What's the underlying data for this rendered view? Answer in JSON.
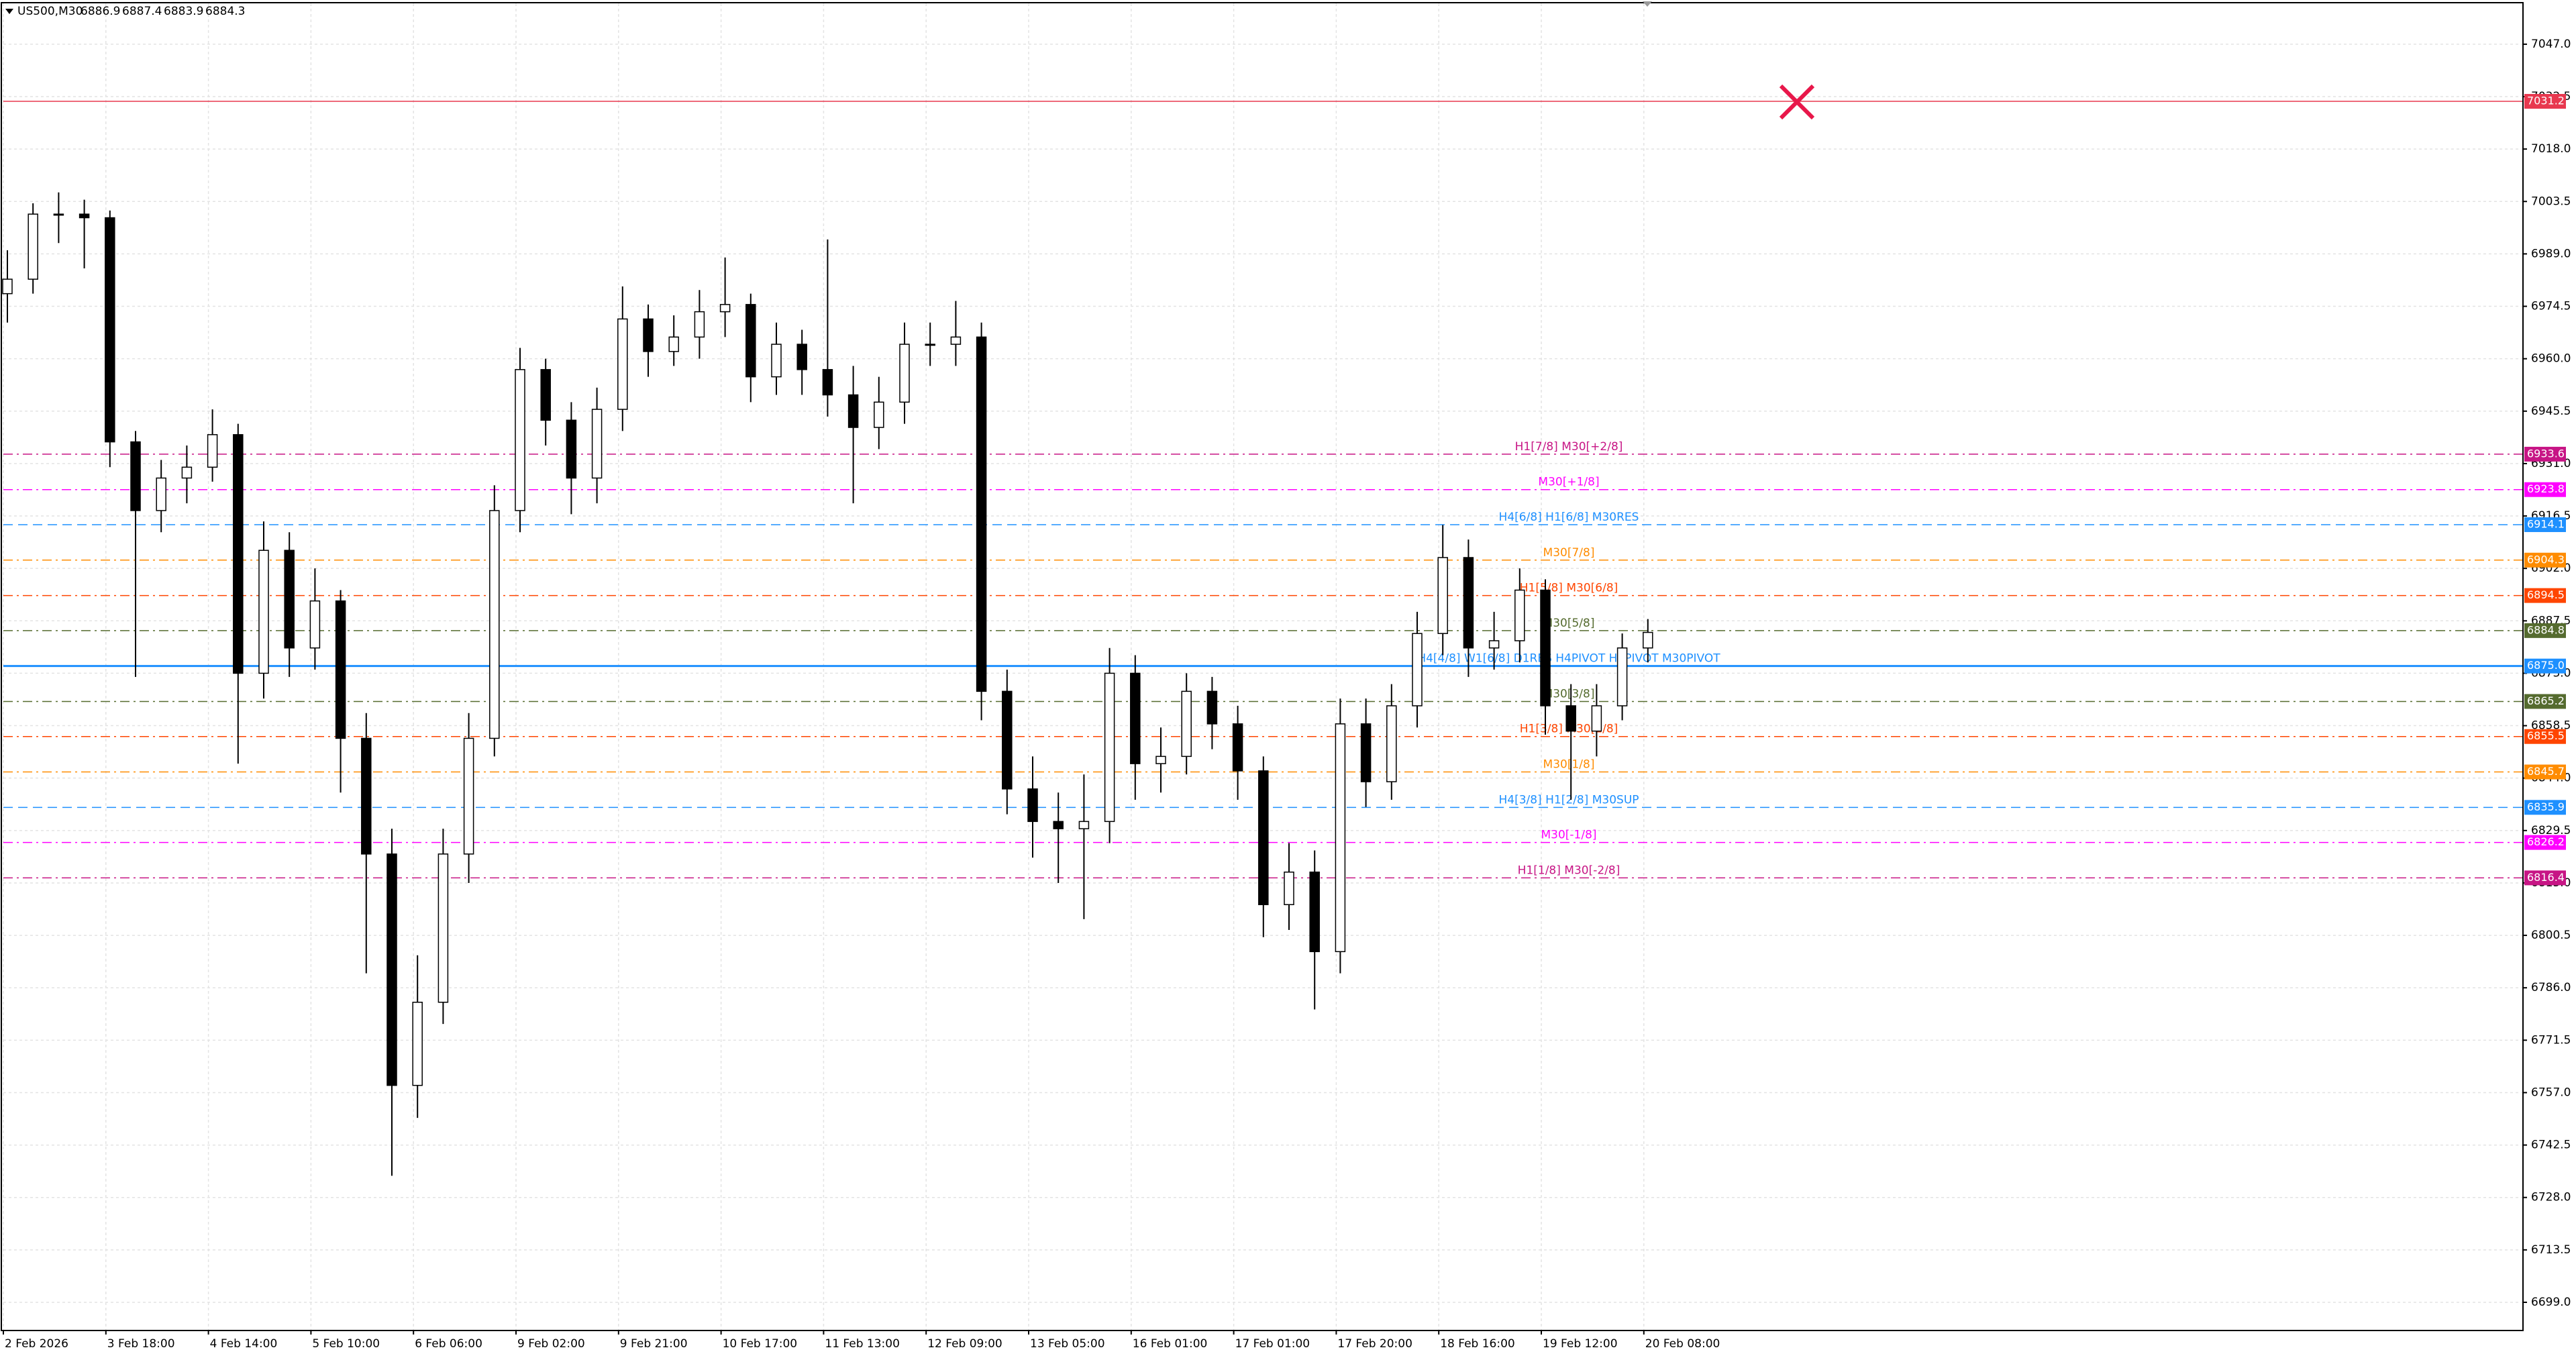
{
  "header": {
    "symbol": "US500,M30",
    "ohlc": [
      6886.9,
      6887.4,
      6883.9,
      6884.3
    ]
  },
  "chart_data": {
    "type": "candlestick",
    "categories": [
      "2 Feb 2026",
      null,
      null,
      null,
      "3 Feb 18:00",
      null,
      null,
      null,
      "4 Feb 14:00",
      null,
      null,
      null,
      "5 Feb 10:00",
      null,
      null,
      null,
      "6 Feb 06:00",
      null,
      null,
      null,
      "9 Feb 02:00",
      null,
      null,
      null,
      "9 Feb 21:00",
      null,
      null,
      null,
      "10 Feb 17:00",
      null,
      null,
      null,
      "11 Feb 13:00",
      null,
      null,
      null,
      "12 Feb 09:00",
      null,
      null,
      null,
      "13 Feb 05:00",
      null,
      null,
      null,
      "16 Feb 01:00",
      null,
      null,
      null,
      "17 Feb 01:00",
      null,
      null,
      null,
      "17 Feb 20:00",
      null,
      null,
      null,
      "18 Feb 16:00",
      null,
      null,
      null,
      "19 Feb 12:00",
      null,
      null,
      null,
      "20 Feb 08:00"
    ],
    "open": [
      6978,
      6982,
      7000,
      7000,
      6999,
      6937,
      6918,
      6927,
      6930,
      6939,
      6873,
      6907,
      6880,
      6893,
      6855,
      6823,
      6759,
      6782,
      6823,
      6855,
      6918,
      6957,
      6943,
      6927,
      6946,
      6971,
      6962,
      6966,
      6973,
      6975,
      6955,
      6964,
      6957,
      6950,
      6941,
      6948,
      6964,
      6964,
      6966,
      6868,
      6841,
      6832,
      6830,
      6832,
      6873,
      6848,
      6850,
      6868,
      6859,
      6846,
      6809,
      6818,
      6796,
      6859,
      6843,
      6864,
      6884,
      6905,
      6880,
      6882,
      6896,
      6864,
      6857,
      6864,
      6880
    ],
    "high": [
      6990,
      7003,
      7006,
      7004,
      7001,
      6940,
      6932,
      6936,
      6946,
      6942,
      6915,
      6912,
      6902,
      6896,
      6862,
      6830,
      6795,
      6830,
      6862,
      6925,
      6963,
      6960,
      6948,
      6952,
      6980,
      6975,
      6972,
      6979,
      6988,
      6978,
      6970,
      6968,
      6993,
      6958,
      6955,
      6970,
      6970,
      6976,
      6970,
      6874,
      6850,
      6840,
      6845,
      6880,
      6878,
      6858,
      6873,
      6872,
      6864,
      6850,
      6826,
      6824,
      6866,
      6866,
      6870,
      6890,
      6914,
      6910,
      6890,
      6902,
      6899,
      6870,
      6870,
      6884,
      6888
    ],
    "low": [
      6970,
      6978,
      6992,
      6985,
      6930,
      6872,
      6912,
      6920,
      6926,
      6848,
      6866,
      6872,
      6874,
      6840,
      6790,
      6734,
      6750,
      6776,
      6815,
      6850,
      6912,
      6936,
      6917,
      6920,
      6940,
      6955,
      6958,
      6960,
      6966,
      6948,
      6950,
      6950,
      6944,
      6920,
      6935,
      6942,
      6958,
      6958,
      6860,
      6834,
      6822,
      6815,
      6805,
      6826,
      6838,
      6840,
      6845,
      6852,
      6838,
      6800,
      6802,
      6780,
      6790,
      6836,
      6838,
      6858,
      6878,
      6872,
      6874,
      6876,
      6856,
      6838,
      6850,
      6860,
      6876
    ],
    "close": [
      6982,
      7000,
      7000,
      6999,
      6937,
      6918,
      6927,
      6930,
      6939,
      6873,
      6907,
      6880,
      6893,
      6855,
      6823,
      6759,
      6782,
      6823,
      6855,
      6918,
      6957,
      6943,
      6927,
      6946,
      6971,
      6962,
      6966,
      6973,
      6975,
      6955,
      6964,
      6957,
      6950,
      6941,
      6948,
      6964,
      6964,
      6966,
      6868,
      6841,
      6832,
      6830,
      6832,
      6873,
      6848,
      6850,
      6868,
      6859,
      6846,
      6809,
      6818,
      6796,
      6859,
      6843,
      6864,
      6884,
      6905,
      6880,
      6882,
      6896,
      6864,
      6857,
      6864,
      6880,
      6884.3
    ],
    "up_color": "#ffffff",
    "down_color": "#000000",
    "wick_color": "#000000",
    "ylim": [
      6691.2,
      7058.3
    ],
    "yticks": [
      {
        "value": 7047,
        "label": "7047.0"
      },
      7032.5,
      {
        "value": 7018,
        "label": "7018.0"
      },
      7003.5,
      {
        "value": 6989,
        "label": "6989.0"
      },
      6974.5,
      {
        "value": 6960,
        "label": "6960.0"
      },
      6945.5,
      {
        "value": 6931,
        "label": "6931.0"
      },
      6916.5,
      {
        "value": 6902,
        "label": "6902.0"
      },
      6887.5,
      {
        "value": 6873,
        "label": "6873.0"
      },
      6858.5,
      {
        "value": 6844,
        "label": "6844.0"
      },
      6829.5,
      {
        "value": 6815,
        "label": "6815.0"
      },
      6800.5,
      {
        "value": 6786,
        "label": "6786.0"
      },
      6771.5,
      {
        "value": 6757,
        "label": "6757.0"
      },
      6742.5,
      {
        "value": 6728,
        "label": "6728.0"
      },
      6713.5,
      {
        "value": 6699,
        "label": "6699.0"
      }
    ],
    "grid": true,
    "levels": [
      {
        "value": 7031.2,
        "color": "#e8384f",
        "style": "solid"
      },
      {
        "name": "H1[7/8] M30[+2/8]",
        "value": 6933.6,
        "color": "#c71585",
        "style": "dashdot"
      },
      {
        "name": "M30[+1/8]",
        "value": 6923.8,
        "color": "#ff00ff",
        "style": "dashdot"
      },
      {
        "name": "H4[6/8] H1[6/8] M30RES",
        "value": 6914.1,
        "color": "#1e90ff",
        "style": "dash"
      },
      {
        "name": "M30[7/8]",
        "value": 6904.3,
        "color": "#ff8c00",
        "style": "dashdot"
      },
      {
        "name": "H1[5/8] M30[6/8]",
        "value": 6894.5,
        "color": "#ff4500",
        "style": "dashdot"
      },
      {
        "name": "M30[5/8]",
        "value": 6884.8,
        "color": "#556b2f",
        "style": "dashdot"
      },
      {
        "name": "H4[4/8] W1[6/8] D1RES H4PIVOT H1PIVOT M30PIVOT",
        "value": 6875,
        "value_label": "6875.0",
        "color": "#1e90ff",
        "style": "solid"
      },
      {
        "name": "M30[3/8]",
        "value": 6865.2,
        "color": "#556b2f",
        "style": "dashdot"
      },
      {
        "name": "H1[3/8] M30[2/8]",
        "value": 6855.5,
        "color": "#ff4500",
        "style": "dashdot"
      },
      {
        "name": "M30[1/8]",
        "value": 6845.7,
        "color": "#ff8c00",
        "style": "dashdot"
      },
      {
        "name": "H4[3/8] H1[2/8] M30SUP",
        "value": 6835.9,
        "color": "#1e90ff",
        "style": "dash"
      },
      {
        "name": "M30[-1/8]",
        "value": 6826.2,
        "color": "#ff00ff",
        "style": "dashdot"
      },
      {
        "name": "H1[1/8] M30[-2/8]",
        "value": 6816.4,
        "color": "#c71585",
        "style": "dashdot"
      }
    ]
  }
}
